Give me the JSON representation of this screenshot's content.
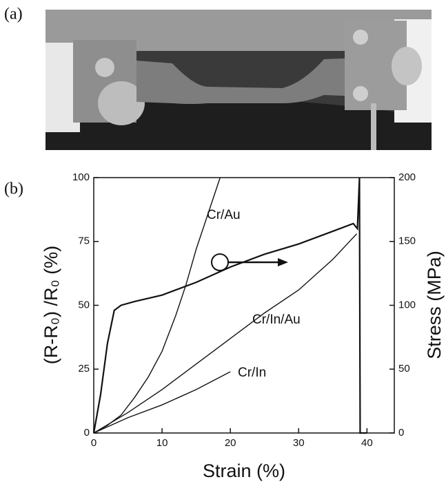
{
  "panel_labels": [
    "(a)",
    "(b)"
  ],
  "chart_data": {
    "type": "line",
    "xlabel": "Strain (%)",
    "ylabel": "(R-R₀) /R₀ (%)",
    "y2label": "Stress (MPa)",
    "xlim": [
      0,
      44
    ],
    "xticks": [
      0,
      10,
      20,
      30,
      40
    ],
    "ylim": [
      0,
      100
    ],
    "yticks": [
      0,
      25,
      50,
      75,
      100
    ],
    "y2lim": [
      0,
      200
    ],
    "y2ticks": [
      0,
      50,
      100,
      150,
      200
    ],
    "series": [
      {
        "name": "Cr/Au",
        "color": "#111111",
        "x": [
          0,
          2,
          4,
          6,
          8,
          10,
          12,
          13.5,
          15,
          17,
          18.5
        ],
        "values": [
          0,
          3,
          7,
          14,
          22,
          32,
          46,
          58,
          72,
          88,
          100
        ]
      },
      {
        "name": "Cr/In/Au",
        "color": "#111111",
        "x": [
          0,
          5,
          10,
          15,
          20,
          25,
          30,
          35,
          38.5
        ],
        "values": [
          0,
          8,
          17,
          27,
          37,
          47,
          56,
          68,
          78
        ]
      },
      {
        "name": "Cr/In",
        "color": "#111111",
        "x": [
          0,
          5,
          10,
          15,
          20
        ],
        "values": [
          0,
          6,
          11,
          17,
          24
        ]
      },
      {
        "color": "#111111",
        "axis": "y2",
        "x": [
          0,
          1,
          2,
          3,
          4,
          6,
          10,
          15,
          20,
          25,
          30,
          35,
          38,
          38.6,
          38.9,
          39,
          40
        ],
        "values": [
          0,
          30,
          70,
          96,
          100,
          103,
          108,
          118,
          130,
          140,
          148,
          158,
          164,
          160,
          200,
          0,
          0
        ]
      }
    ]
  }
}
